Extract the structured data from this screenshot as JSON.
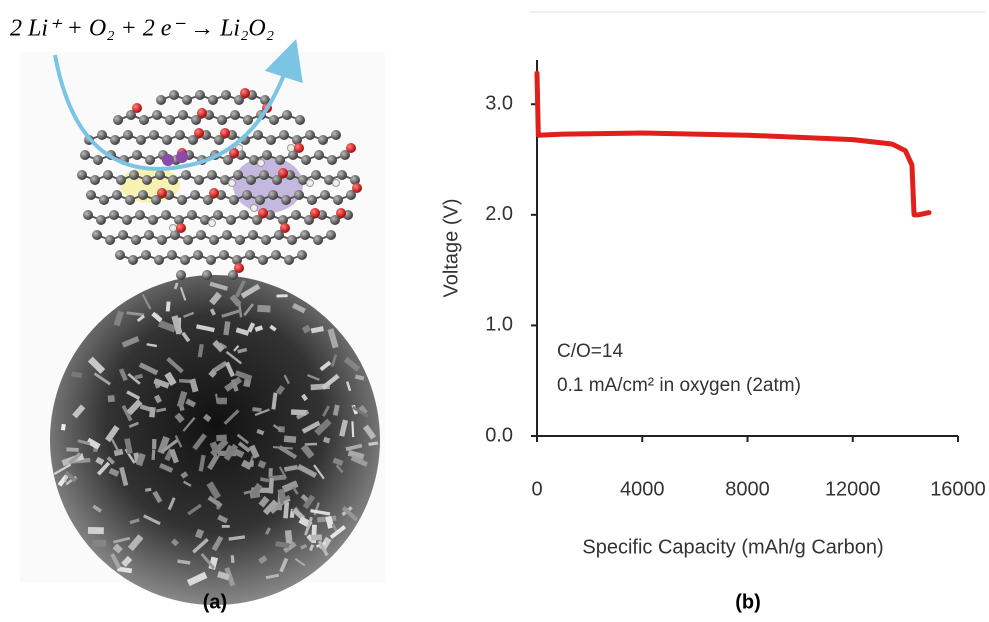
{
  "equation": "2 Li⁺ + O₂ + 2 e⁻ → Li₂O₂",
  "panel_labels": [
    "(a)",
    "(b)"
  ],
  "chart_data": {
    "type": "line",
    "xlabel": "Specific Capacity (mAh/g Carbon)",
    "ylabel": "Voltage (V)",
    "annotations": [
      "C/O=14",
      "0.1 mA/cm² in oxygen (2atm)"
    ],
    "xlim": [
      0,
      16000
    ],
    "xticks": [
      0,
      4000,
      8000,
      12000,
      16000
    ],
    "ylim": [
      0,
      3.4
    ],
    "yticks": [
      {
        "value": 0,
        "label": "0.0"
      },
      {
        "value": 1,
        "label": "1.0"
      },
      {
        "value": 2,
        "label": "2.0"
      },
      {
        "value": 3,
        "label": "3.0"
      }
    ],
    "series": [
      {
        "color": "#e0201b",
        "x": [
          0,
          50,
          1000,
          4000,
          8000,
          12000,
          13500,
          14000,
          14250,
          14330,
          14500,
          14900
        ],
        "values": [
          3.28,
          2.72,
          2.73,
          2.74,
          2.72,
          2.68,
          2.64,
          2.58,
          2.45,
          2.0,
          2.0,
          2.02
        ]
      }
    ]
  }
}
